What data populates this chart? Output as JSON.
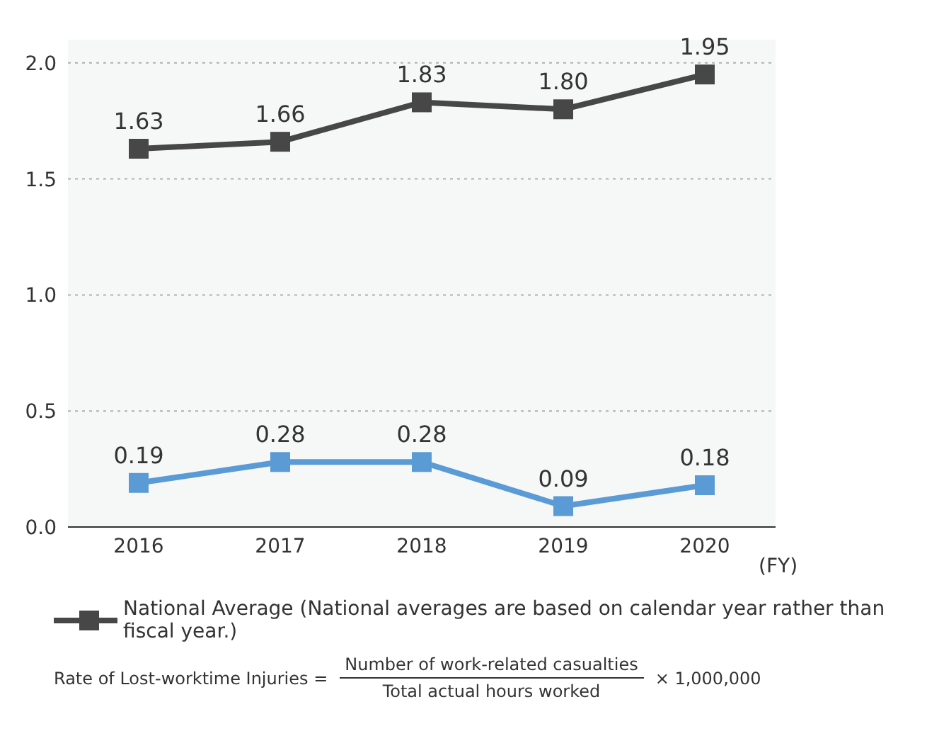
{
  "chart_data": {
    "type": "line",
    "categories": [
      "2016",
      "2017",
      "2018",
      "2019",
      "2020"
    ],
    "xlabel": "(FY)",
    "series": [
      {
        "color": "#5b9bd5",
        "values": [
          0.19,
          0.28,
          0.28,
          0.09,
          0.18
        ],
        "value_labels": [
          "0.19",
          "0.28",
          "0.28",
          "0.09",
          "0.18"
        ]
      },
      {
        "name": "National Average (National averages are based on calendar year rather than fiscal year.)",
        "color": "#474747",
        "values": [
          1.63,
          1.66,
          1.83,
          1.8,
          1.95
        ],
        "value_labels": [
          "1.63",
          "1.66",
          "1.83",
          "1.80",
          "1.95"
        ]
      }
    ],
    "ylim": [
      0,
      2.1
    ],
    "yticks": [
      {
        "value": 0,
        "label": "0.0"
      },
      {
        "value": 0.5,
        "label": "0.5"
      },
      {
        "value": 1,
        "label": "1.0"
      },
      {
        "value": 1.5,
        "label": "1.5"
      },
      {
        "value": 2,
        "label": "2.0"
      }
    ],
    "grid": "y",
    "marker": "square",
    "line_style": "solid",
    "legend": "bottom",
    "annotations": [
      "Rate of Lost-worktime Injuries =",
      "Number of work-related casualties",
      "Total actual hours worked",
      "× 1,000,000"
    ]
  }
}
